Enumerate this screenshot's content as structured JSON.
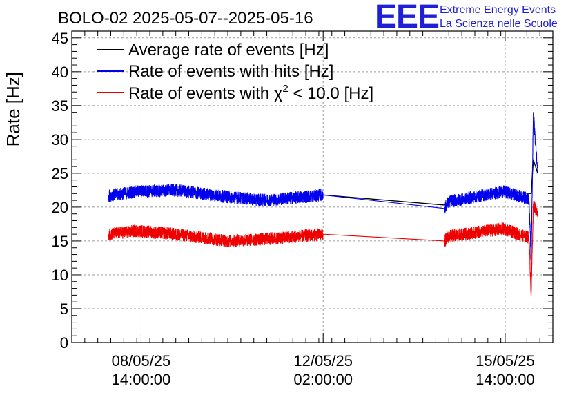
{
  "chart_data": {
    "type": "line",
    "title": "BOLO-02 2025-05-07--2025-05-16",
    "ylabel": "Rate [Hz]",
    "xlabel": "",
    "ylim": [
      0,
      46
    ],
    "y_ticks": [
      0,
      5,
      10,
      15,
      20,
      25,
      30,
      35,
      40,
      45
    ],
    "x_ticks": [
      {
        "date": "2025-05-08T14:00:00",
        "line1": "08/05/25",
        "line2": "14:00:00"
      },
      {
        "date": "2025-05-12T02:00:00",
        "line1": "12/05/25",
        "line2": "02:00:00"
      },
      {
        "date": "2025-05-15T14:00:00",
        "line1": "15/05/25",
        "line2": "14:00:00"
      }
    ],
    "xlim": [
      "2025-05-07T06:00:00",
      "2025-05-16T12:00:00"
    ],
    "grid": true,
    "legend_position": "top-left",
    "series": [
      {
        "name": "Average rate of events [Hz]",
        "color": "#000000",
        "x": [
          "2025-05-07T23:00:00",
          "2025-05-08T12:00:00",
          "2025-05-09T06:00:00",
          "2025-05-10T06:00:00",
          "2025-05-11T00:00:00",
          "2025-05-12T02:00:00",
          "2025-05-14T10:00:00",
          "2025-05-14T12:00:00",
          "2025-05-15T13:00:00",
          "2025-05-16T02:00:00",
          "2025-05-16T03:00:00",
          "2025-05-16T05:00:00"
        ],
        "y": [
          21.7,
          22.3,
          22.5,
          21.5,
          21.0,
          21.8,
          20.3,
          20.7,
          22.3,
          22.0,
          27.0,
          25.0
        ]
      },
      {
        "name": "Rate of events with hits [Hz]",
        "color": "#0000ee",
        "x": [
          "2025-05-07T23:00:00",
          "2025-05-08T12:00:00",
          "2025-05-09T06:00:00",
          "2025-05-10T06:00:00",
          "2025-05-11T00:00:00",
          "2025-05-12T02:00:00",
          "2025-05-14T10:00:00",
          "2025-05-14T12:00:00",
          "2025-05-15T13:00:00",
          "2025-05-16T01:00:00",
          "2025-05-16T02:00:00",
          "2025-05-16T03:00:00",
          "2025-05-16T05:00:00"
        ],
        "y": [
          21.7,
          22.3,
          22.5,
          21.5,
          21.0,
          21.8,
          19.8,
          20.8,
          22.3,
          21.2,
          12.0,
          34.0,
          25.0
        ]
      },
      {
        "name": "Rate of events with χ² < 10.0 [Hz]",
        "color": "#ee0000",
        "x": [
          "2025-05-07T23:00:00",
          "2025-05-08T12:00:00",
          "2025-05-09T06:00:00",
          "2025-05-10T06:00:00",
          "2025-05-11T00:00:00",
          "2025-05-12T02:00:00",
          "2025-05-14T10:00:00",
          "2025-05-14T12:00:00",
          "2025-05-15T13:00:00",
          "2025-05-16T01:00:00",
          "2025-05-16T02:00:00",
          "2025-05-16T03:00:00",
          "2025-05-16T05:00:00"
        ],
        "y": [
          16.0,
          16.5,
          16.0,
          15.0,
          15.3,
          16.0,
          15.0,
          15.7,
          16.8,
          15.5,
          7.0,
          20.5,
          18.8
        ]
      }
    ]
  },
  "legend": {
    "avg_label": "Average rate of events [Hz]",
    "hits_prefix": "Rate of events with hits [Hz]",
    "chi_prefix": "Rate of events with χ",
    "chi_sup": "2",
    "chi_suffix": " < 10.0 [Hz]"
  },
  "logo": {
    "mark": "EEE",
    "line1": "Extreme Energy Events",
    "line2": "La Scienza nelle Scuole",
    "color": "#1f1fd6"
  }
}
